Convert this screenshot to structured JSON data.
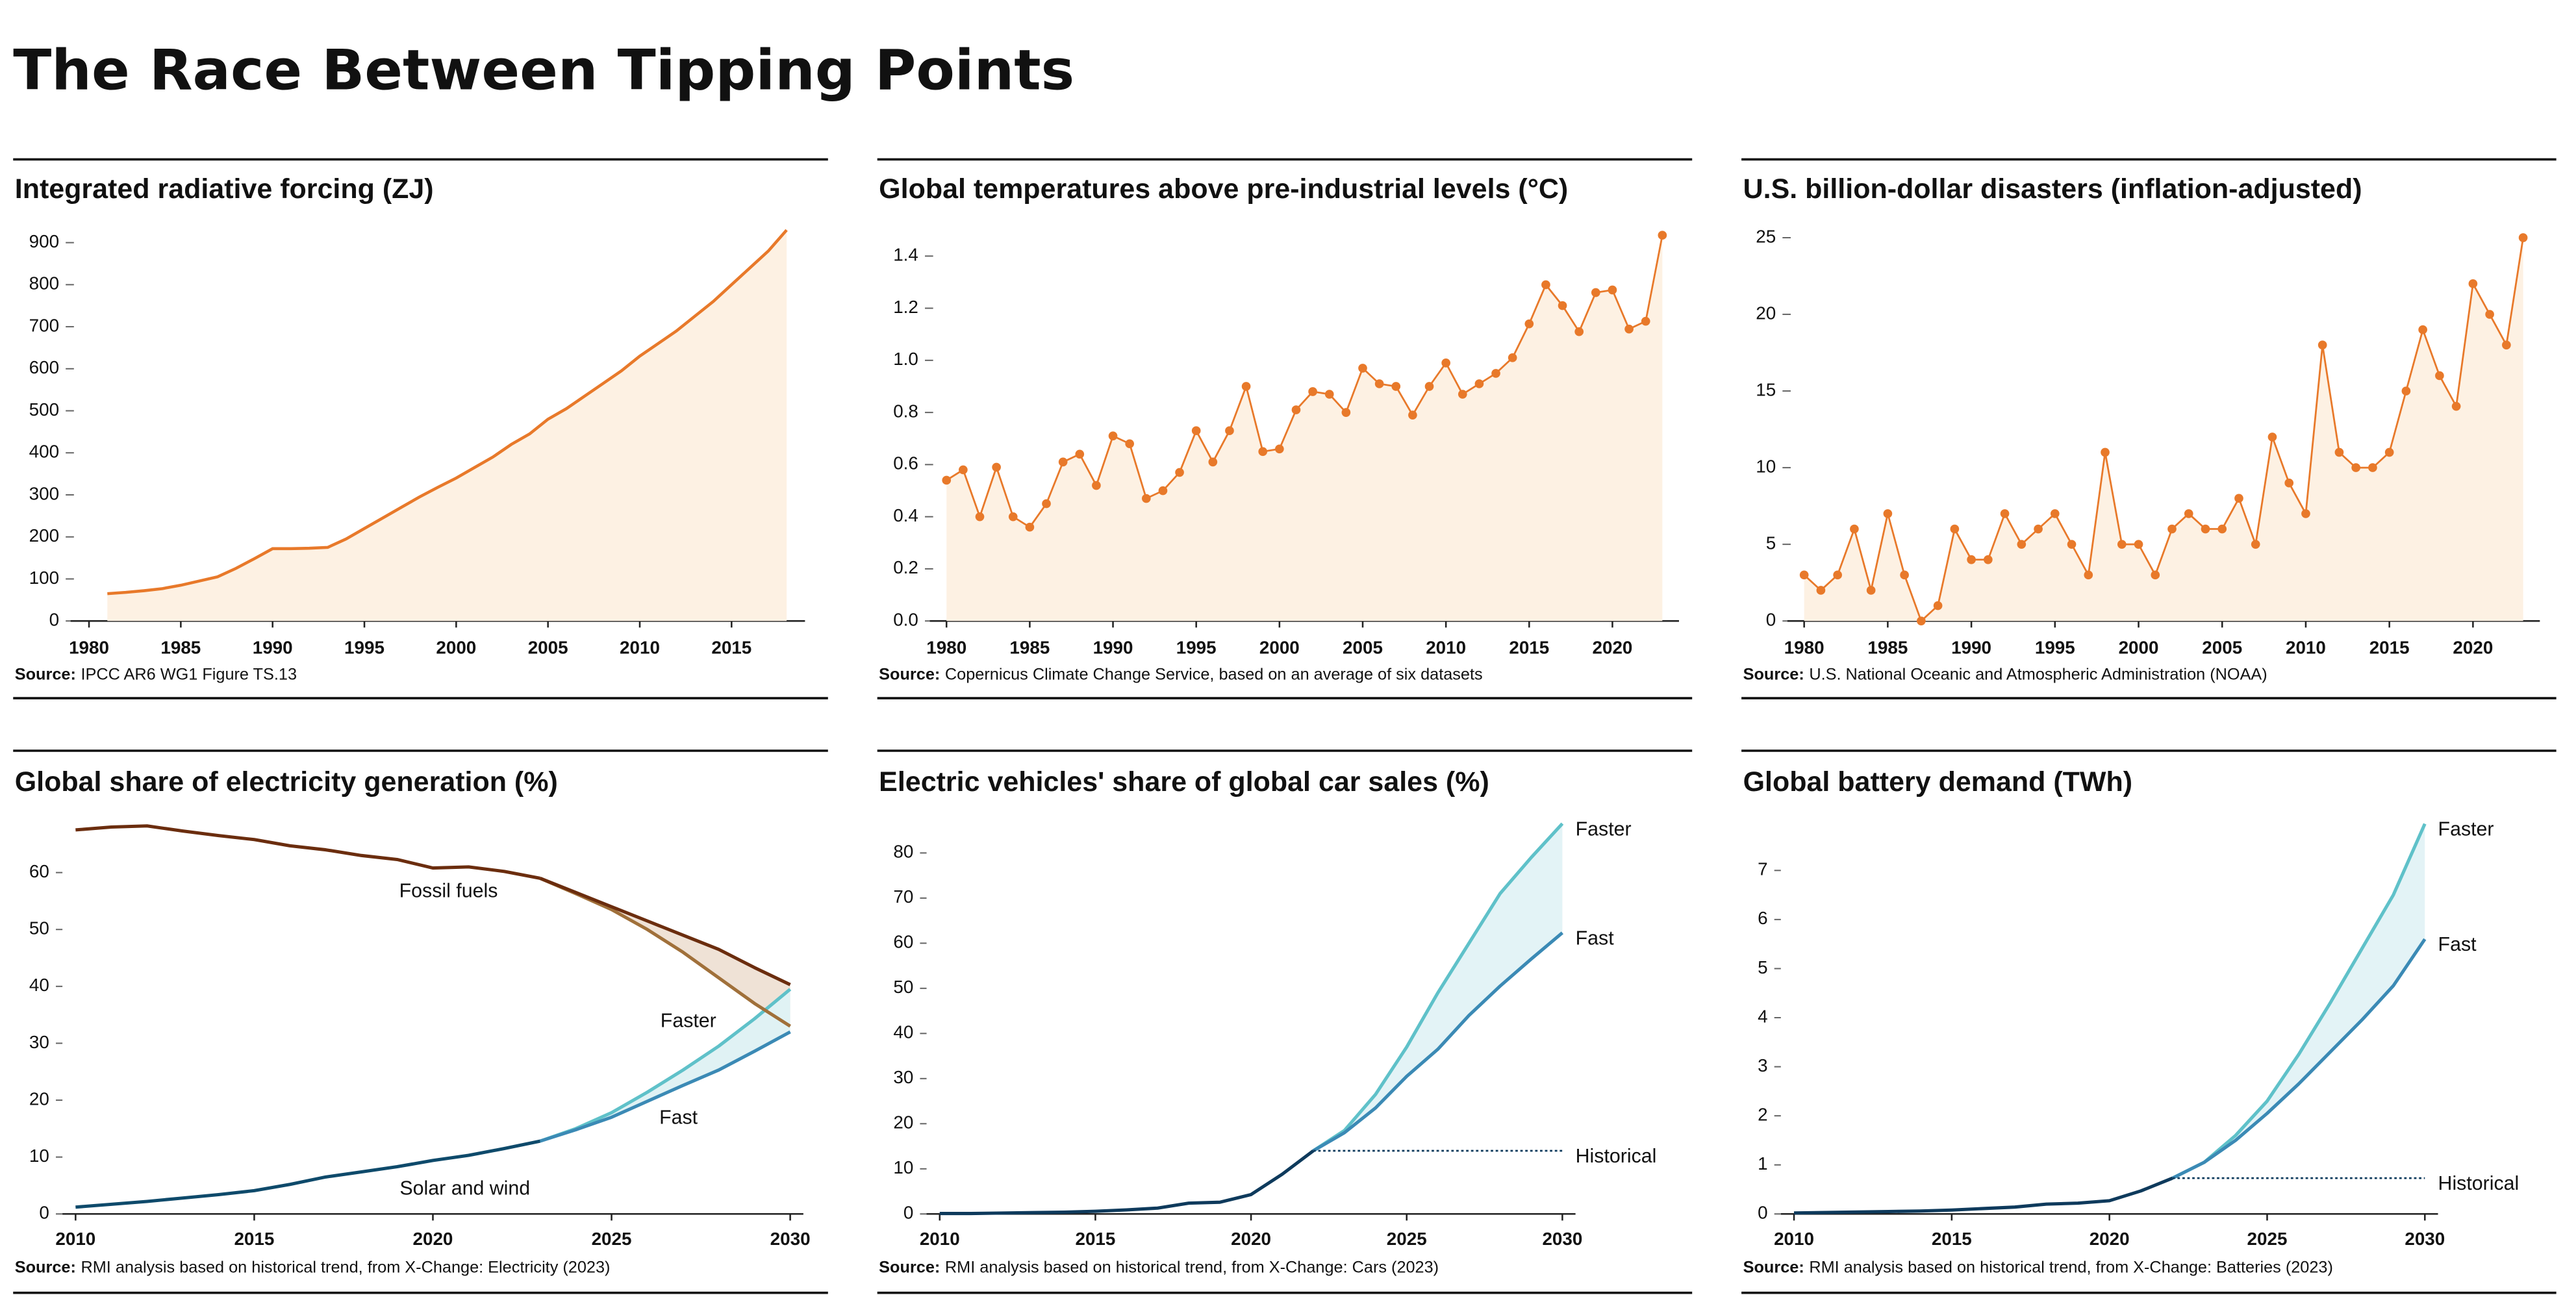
{
  "title": "The Race Between Tipping Points",
  "chart_data": [
    {
      "type": "area",
      "title": "Integrated radiative forcing (ZJ)",
      "source_label": "Source:",
      "source": "IPCC AR6 WG1 Figure TS.13",
      "color": "#e8792a",
      "fill_color": "#fdf1e3",
      "markers": false,
      "x": [
        1981,
        1982,
        1983,
        1984,
        1985,
        1986,
        1987,
        1988,
        1989,
        1990,
        1991,
        1992,
        1993,
        1994,
        1995,
        1996,
        1997,
        1998,
        1999,
        2000,
        2001,
        2002,
        2003,
        2004,
        2005,
        2006,
        2007,
        2008,
        2009,
        2010,
        2011,
        2012,
        2013,
        2014,
        2015,
        2016,
        2017,
        2018
      ],
      "values": [
        65,
        68,
        72,
        77,
        85,
        95,
        105,
        125,
        148,
        172,
        172,
        173,
        175,
        195,
        220,
        245,
        270,
        295,
        318,
        340,
        365,
        390,
        420,
        445,
        480,
        505,
        535,
        565,
        595,
        630,
        660,
        690,
        725,
        760,
        800,
        840,
        880,
        930
      ],
      "xlim": [
        1979,
        2019
      ],
      "xticks": [
        1980,
        1985,
        1990,
        1995,
        2000,
        2005,
        2010,
        2015
      ],
      "ylim": [
        0,
        930
      ],
      "yticks": [
        0,
        100,
        200,
        300,
        400,
        500,
        600,
        700,
        800,
        900
      ]
    },
    {
      "type": "area",
      "title": "Global temperatures above pre-industrial levels (°C)",
      "source_label": "Source:",
      "source": "Copernicus Climate Change Service, based on an average of six datasets",
      "color": "#e8792a",
      "fill_color": "#fdf1e3",
      "markers": true,
      "x": [
        1980,
        1981,
        1982,
        1983,
        1984,
        1985,
        1986,
        1987,
        1988,
        1989,
        1990,
        1991,
        1992,
        1993,
        1994,
        1995,
        1996,
        1997,
        1998,
        1999,
        2000,
        2001,
        2002,
        2003,
        2004,
        2005,
        2006,
        2007,
        2008,
        2009,
        2010,
        2011,
        2012,
        2013,
        2014,
        2015,
        2016,
        2017,
        2018,
        2019,
        2020,
        2021,
        2022,
        2023
      ],
      "values": [
        0.54,
        0.58,
        0.4,
        0.59,
        0.4,
        0.36,
        0.45,
        0.61,
        0.64,
        0.52,
        0.71,
        0.68,
        0.47,
        0.5,
        0.57,
        0.73,
        0.61,
        0.73,
        0.9,
        0.65,
        0.66,
        0.81,
        0.88,
        0.87,
        0.8,
        0.97,
        0.91,
        0.9,
        0.79,
        0.9,
        0.99,
        0.87,
        0.91,
        0.95,
        1.01,
        1.14,
        1.29,
        1.21,
        1.11,
        1.26,
        1.27,
        1.12,
        1.15,
        1.48
      ],
      "xlim": [
        1979,
        2024
      ],
      "xticks": [
        1980,
        1985,
        1990,
        1995,
        2000,
        2005,
        2010,
        2015,
        2020
      ],
      "ylim": [
        0,
        1.5
      ],
      "yticks": [
        {
          "value": 0,
          "label": "0.0"
        },
        0.2,
        0.4,
        0.6,
        0.8,
        {
          "value": 1,
          "label": "1.0"
        },
        1.2,
        1.4
      ]
    },
    {
      "type": "area",
      "title": "U.S. billion-dollar disasters (inflation-adjusted)",
      "source_label": "Source:",
      "source": "U.S. National Oceanic and Atmospheric Administration (NOAA)",
      "color": "#e8792a",
      "fill_color": "#fdf1e3",
      "markers": true,
      "x": [
        1980,
        1981,
        1982,
        1983,
        1984,
        1985,
        1986,
        1987,
        1988,
        1989,
        1990,
        1991,
        1992,
        1993,
        1994,
        1995,
        1996,
        1997,
        1998,
        1999,
        2000,
        2001,
        2002,
        2003,
        2004,
        2005,
        2006,
        2007,
        2008,
        2009,
        2010,
        2011,
        2012,
        2013,
        2014,
        2015,
        2016,
        2017,
        2018,
        2019,
        2020,
        2021,
        2022,
        2023
      ],
      "values": [
        3,
        2,
        3,
        6,
        2,
        7,
        3,
        0,
        1,
        6,
        4,
        4,
        7,
        5,
        6,
        7,
        5,
        3,
        11,
        5,
        5,
        3,
        6,
        7,
        6,
        6,
        8,
        5,
        12,
        9,
        7,
        18,
        11,
        10,
        10,
        11,
        15,
        19,
        16,
        14,
        22,
        20,
        18,
        25
      ],
      "xlim": [
        1979,
        2024
      ],
      "xticks": [
        1980,
        1985,
        1990,
        1995,
        2000,
        2005,
        2010,
        2015,
        2020
      ],
      "ylim": [
        0,
        25.5
      ],
      "yticks": [
        0,
        5,
        10,
        15,
        20,
        25
      ]
    },
    {
      "type": "line",
      "title": "Global share of electricity generation (%)",
      "source_label": "Source:",
      "source": "RMI analysis based on historical trend, from X-Change: Electricity (2023)",
      "x": [
        2010,
        2011,
        2012,
        2013,
        2014,
        2015,
        2016,
        2017,
        2018,
        2019,
        2020,
        2021,
        2022,
        2023,
        2024,
        2025,
        2026,
        2027,
        2028,
        2029,
        2030
      ],
      "series": [
        {
          "name": "Fossil fuels",
          "color": "#6b2d0e",
          "values": [
            67.5,
            68,
            68.2,
            67.3,
            66.5,
            65.8,
            64.7,
            64,
            63,
            62.3,
            60.8,
            61,
            60.2,
            59,
            null,
            null,
            null,
            null,
            null,
            null,
            null
          ]
        },
        {
          "name": "Solar and wind",
          "color": "#0e4a6b",
          "values": [
            1.2,
            1.7,
            2.2,
            2.8,
            3.4,
            4.1,
            5.2,
            6.5,
            7.4,
            8.3,
            9.4,
            10.3,
            11.5,
            12.8,
            null,
            null,
            null,
            null,
            null,
            null,
            null
          ]
        },
        {
          "color": "#6b2d0e",
          "values": [
            null,
            null,
            null,
            null,
            null,
            null,
            null,
            null,
            null,
            null,
            null,
            null,
            null,
            59,
            56.5,
            54,
            51.5,
            49,
            46.5,
            43.3,
            40.3
          ]
        },
        {
          "color": "#a0703a",
          "band_with": 2,
          "band_color": "#efe2d6",
          "values": [
            null,
            null,
            null,
            null,
            null,
            null,
            null,
            null,
            null,
            null,
            null,
            null,
            null,
            59,
            56.3,
            53.5,
            50,
            46,
            41.5,
            37,
            33
          ]
        },
        {
          "name": "Fast",
          "color": "#3b8ab5",
          "values": [
            null,
            null,
            null,
            null,
            null,
            null,
            null,
            null,
            null,
            null,
            null,
            null,
            null,
            12.8,
            14.8,
            17,
            19.8,
            22.6,
            25.3,
            28.6,
            32
          ]
        },
        {
          "name": "Faster",
          "color": "#5fc1c9",
          "band_with": 4,
          "band_color": "#e0f2f4",
          "values": [
            null,
            null,
            null,
            null,
            null,
            null,
            null,
            null,
            null,
            null,
            null,
            null,
            null,
            12.8,
            15,
            17.8,
            21.4,
            25.3,
            29.5,
            34.3,
            39.5
          ]
        }
      ],
      "xlim": [
        2010,
        2030
      ],
      "xticks": [
        2010,
        2015,
        2020,
        2025,
        2030
      ],
      "ylim": [
        0,
        69
      ],
      "yticks": [
        0,
        10,
        20,
        30,
        40,
        50,
        60
      ]
    },
    {
      "type": "line",
      "title": "Electric vehicles' share of global car sales (%)",
      "source_label": "Source:",
      "source": "RMI analysis based on historical trend, from X-Change: Cars (2023)",
      "x": [
        2010,
        2011,
        2012,
        2013,
        2014,
        2015,
        2016,
        2017,
        2018,
        2019,
        2020,
        2021,
        2022,
        2023,
        2024,
        2025,
        2026,
        2027,
        2028,
        2029,
        2030
      ],
      "series": [
        {
          "name": "Historical",
          "color": "#0e3a5c",
          "flat_extension": true,
          "values": [
            0.1,
            0.1,
            0.2,
            0.3,
            0.4,
            0.6,
            0.9,
            1.3,
            2.4,
            2.6,
            4.3,
            8.8,
            14,
            null,
            null,
            null,
            null,
            null,
            null,
            null,
            null
          ]
        },
        {
          "name": "Fast",
          "color": "#3b8ab5",
          "values": [
            null,
            null,
            null,
            null,
            null,
            null,
            null,
            null,
            null,
            null,
            null,
            null,
            14,
            18,
            23.5,
            30.5,
            36.5,
            44,
            50.5,
            56.5,
            62.3
          ]
        },
        {
          "name": "Faster",
          "color": "#5fc1c9",
          "band_with": 1,
          "band_color": "#e3f3f6",
          "values": [
            null,
            null,
            null,
            null,
            null,
            null,
            null,
            null,
            null,
            null,
            null,
            null,
            14,
            18.5,
            26.5,
            37,
            49,
            60,
            71,
            79,
            86.5
          ]
        }
      ],
      "xlim": [
        2010,
        2030
      ],
      "xticks": [
        2010,
        2015,
        2020,
        2025,
        2030
      ],
      "ylim": [
        0,
        87
      ],
      "yticks": [
        0,
        10,
        20,
        30,
        40,
        50,
        60,
        70,
        80
      ]
    },
    {
      "type": "line",
      "title": "Global battery demand (TWh)",
      "source_label": "Source:",
      "source": "RMI analysis based on historical trend, from X-Change: Batteries (2023)",
      "x": [
        2010,
        2011,
        2012,
        2013,
        2014,
        2015,
        2016,
        2017,
        2018,
        2019,
        2020,
        2021,
        2022,
        2023,
        2024,
        2025,
        2026,
        2027,
        2028,
        2029,
        2030
      ],
      "series": [
        {
          "name": "Historical",
          "color": "#0e3a5c",
          "flat_extension": true,
          "values": [
            0.02,
            0.03,
            0.04,
            0.05,
            0.06,
            0.08,
            0.11,
            0.14,
            0.2,
            0.22,
            0.27,
            0.47,
            0.73,
            null,
            null,
            null,
            null,
            null,
            null,
            null,
            null
          ]
        },
        {
          "name": "Fast",
          "color": "#3b8ab5",
          "values": [
            null,
            null,
            null,
            null,
            null,
            null,
            null,
            null,
            null,
            null,
            null,
            null,
            0.73,
            1.05,
            1.5,
            2.05,
            2.65,
            3.3,
            3.95,
            4.65,
            5.6
          ]
        },
        {
          "name": "Faster",
          "color": "#5fc1c9",
          "band_with": 1,
          "band_color": "#e3f3f6",
          "values": [
            null,
            null,
            null,
            null,
            null,
            null,
            null,
            null,
            null,
            null,
            null,
            null,
            0.73,
            1.05,
            1.6,
            2.3,
            3.25,
            4.3,
            5.4,
            6.5,
            7.95
          ]
        }
      ],
      "xlim": [
        2010,
        2030
      ],
      "xticks": [
        2010,
        2015,
        2020,
        2025,
        2030
      ],
      "ylim": [
        0,
        8
      ],
      "yticks": [
        0,
        1,
        2,
        3,
        4,
        5,
        6,
        7
      ]
    }
  ]
}
